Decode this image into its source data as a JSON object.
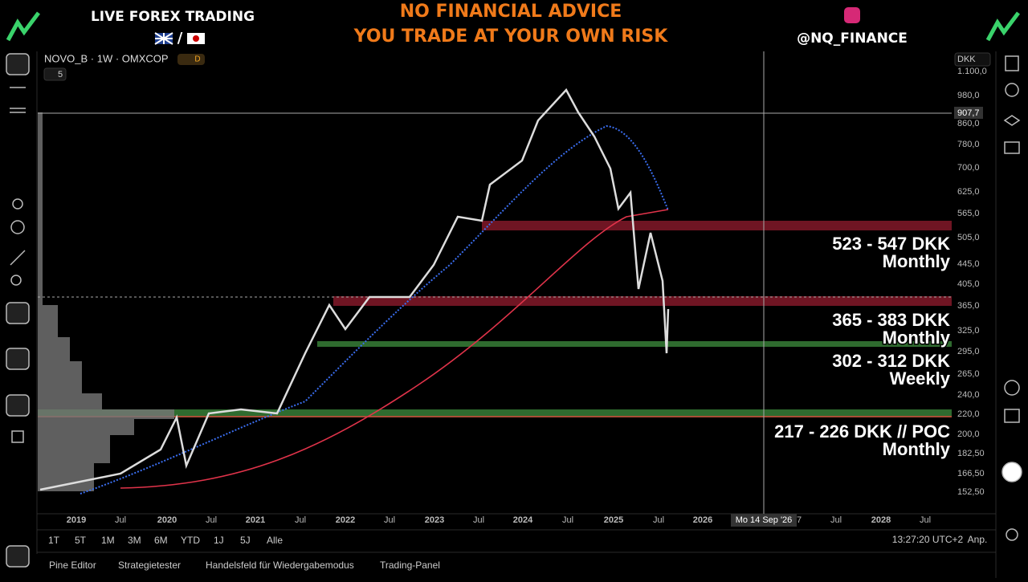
{
  "banner": {
    "left_title": "LIVE FOREX TRADING",
    "flag_separator": "/",
    "warning_line_1": "NO FINANCIAL ADVICE",
    "warning_line_2": "YOU TRADE AT YOUR OWN RISK",
    "handle": "@NQ_FINANCE"
  },
  "symbol": {
    "name": "NOVO_B · 1W · OMXCOP",
    "badge": "D",
    "indicator_count": "5"
  },
  "price_axis": {
    "currency": "DKK",
    "crosshair_price": "907,7",
    "labels": [
      "1.100,0",
      "980,0",
      "860,0",
      "780,0",
      "700,0",
      "625,0",
      "565,0",
      "505,0",
      "445,0",
      "405,0",
      "365,0",
      "325,0",
      "295,0",
      "265,0",
      "240,0",
      "220,0",
      "200,0",
      "182,50",
      "166,50",
      "152,50"
    ]
  },
  "zones": [
    {
      "label": "523 - 547 DKK",
      "period": "Monthly"
    },
    {
      "label": "365 - 383 DKK",
      "period": "Monthly"
    },
    {
      "label": "302 - 312 DKK",
      "period": "Weekly"
    },
    {
      "label": "217 - 226 DKK // POC",
      "period": "Monthly"
    }
  ],
  "time_axis": {
    "labels": [
      "2019",
      "Jul",
      "2020",
      "Jul",
      "2021",
      "Jul",
      "2022",
      "Jul",
      "2023",
      "Jul",
      "2024",
      "Jul",
      "2025",
      "Jul",
      "2026",
      "7",
      "Jul",
      "2028",
      "Jul"
    ],
    "crosshair_date": "Mo 14 Sep '26"
  },
  "toolbar": {
    "timeframes": [
      "1T",
      "5T",
      "1M",
      "3M",
      "6M",
      "YTD",
      "1J",
      "5J",
      "Alle"
    ],
    "clock": "13:27:20 UTC+2",
    "adjust": "Anp."
  },
  "tabs": [
    "Pine Editor",
    "Strategietester",
    "Handelsfeld für Wiedergabemodus",
    "Trading-Panel"
  ]
}
